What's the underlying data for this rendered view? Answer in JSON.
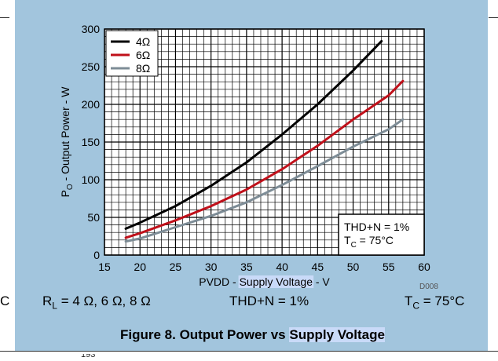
{
  "chart_data": {
    "type": "line",
    "title": "",
    "xlabel_parts": [
      "PVDD - ",
      "Supply Voltage",
      " - V"
    ],
    "ylabel": "P",
    "ylabel_sub": "O",
    "ylabel_rest": " - Output Power - W",
    "xlim": [
      15,
      60
    ],
    "ylim": [
      0,
      300
    ],
    "x_ticks": [
      15,
      20,
      25,
      30,
      35,
      40,
      45,
      50,
      55,
      60
    ],
    "y_ticks": [
      0,
      50,
      100,
      150,
      200,
      250,
      300
    ],
    "grid": true,
    "legend_placement": "top-left",
    "series": [
      {
        "name": "4Ω",
        "color": "#000000",
        "x": [
          18,
          20,
          25,
          30,
          35,
          40,
          45,
          50,
          54
        ],
        "y": [
          35,
          43,
          65,
          92,
          123,
          160,
          200,
          245,
          284
        ]
      },
      {
        "name": "6Ω",
        "color": "#c0101a",
        "x": [
          18,
          20,
          25,
          30,
          35,
          40,
          45,
          50,
          55,
          57
        ],
        "y": [
          23,
          29,
          46,
          65,
          87,
          114,
          145,
          180,
          212,
          231
        ]
      },
      {
        "name": "8Ω",
        "color": "#7d8c96",
        "x": [
          18,
          20,
          25,
          30,
          35,
          40,
          45,
          50,
          55,
          57
        ],
        "y": [
          18,
          22,
          37,
          52,
          70,
          93,
          118,
          144,
          167,
          180
        ]
      }
    ],
    "annotation": {
      "line1": "THD+N = 1%",
      "line2_main": "T",
      "line2_sub": "C",
      "line2_rest": " = 75°C"
    }
  },
  "part_code": "D008",
  "footnotes": {
    "rl_main": "R",
    "rl_sub": "L",
    "rl_rest": " = 4 Ω, 6 Ω, 8 Ω",
    "thd": "THD+N = 1%",
    "tc_main": "T",
    "tc_sub": "C",
    "tc_rest": " = 75°C"
  },
  "caption": {
    "prefix": "Figure 8. Output Power vs ",
    "highlight": "Supply Voltage"
  },
  "clipped": {
    "left": "C",
    "bottom": "193"
  }
}
